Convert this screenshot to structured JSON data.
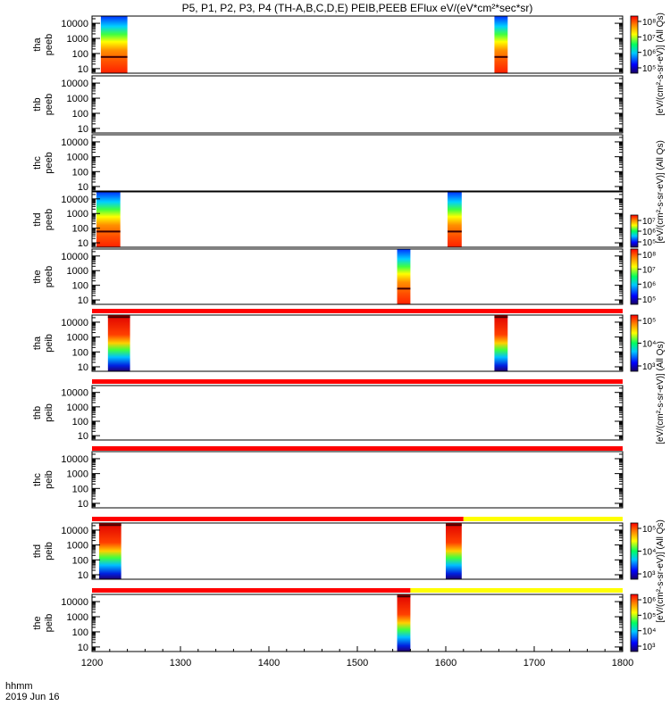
{
  "title": "P5, P1, P2, P3, P4 (TH-A,B,C,D,E) PEIB,PEEB EFlux eV/(eV*cm²*sec*sr)",
  "footer": {
    "time_label": "hhmm",
    "date_label": "2019 Jun 16"
  },
  "chart_data": {
    "type": "heatmap",
    "x_axis": {
      "range": [
        1200,
        1800
      ],
      "ticks": [
        "1200",
        "1300",
        "1400",
        "1500",
        "1600",
        "1700",
        "1800"
      ]
    },
    "y_axis": {
      "scale": "log",
      "range": [
        5,
        30000
      ],
      "ticks": [
        "10",
        "100",
        "1000",
        "10000"
      ]
    },
    "panels": [
      {
        "label1": "tha",
        "label2": "peeb",
        "bursts": [
          [
            1210,
            1240
          ],
          [
            1655,
            1670
          ]
        ],
        "style": "electron"
      },
      {
        "label1": "thb",
        "label2": "peeb",
        "bursts": []
      },
      {
        "label1": "thc",
        "label2": "peeb",
        "bursts": []
      },
      {
        "label1": "thd",
        "label2": "peeb",
        "bursts": [
          [
            1205,
            1232
          ],
          [
            1602,
            1618
          ]
        ],
        "style": "electron"
      },
      {
        "label1": "the",
        "label2": "peeb",
        "bursts": [
          [
            1545,
            1560
          ]
        ],
        "style": "electron"
      },
      {
        "label1": "tha",
        "label2": "peib",
        "bursts": [
          [
            1218,
            1243
          ],
          [
            1655,
            1670
          ]
        ],
        "style": "ion"
      },
      {
        "label1": "thb",
        "label2": "peib",
        "bursts": []
      },
      {
        "label1": "thc",
        "label2": "peib",
        "bursts": []
      },
      {
        "label1": "thd",
        "label2": "peib",
        "bursts": [
          [
            1208,
            1233
          ],
          [
            1600,
            1618
          ]
        ],
        "style": "ion"
      },
      {
        "label1": "the",
        "label2": "peib",
        "bursts": [
          [
            1545,
            1560
          ]
        ],
        "style": "ion"
      }
    ],
    "colorbars": [
      {
        "ticks": [
          "10⁸",
          "10⁷",
          "10⁶",
          "10⁵"
        ]
      },
      {
        "ticks": [
          "10⁷",
          "10⁶",
          "10⁵"
        ]
      },
      {
        "ticks": [
          "10⁸",
          "10⁷",
          "10⁶",
          "10⁵"
        ]
      },
      {
        "ticks": [
          "10⁵",
          "10⁴",
          "10³"
        ]
      },
      {
        "ticks": [
          "10⁵",
          "10⁴",
          "10³"
        ]
      },
      {
        "ticks": [
          "10⁶",
          "10⁵",
          "10⁴",
          "10³"
        ]
      }
    ],
    "colorbar_labels": [
      "[eV/(cm²-s-sr-eV)] (All Qs)",
      "[eV/(cm²-s-sr-eV)] (All Qs)",
      "[eV/(cm²-s-sr-eV)] (All Qs)",
      "[eV/(cm²-s-sr-eV)] (All Qs)"
    ],
    "status_bars": [
      {
        "red_until": 1800
      },
      {
        "red_until": 1800
      },
      {
        "red_until": 1800
      },
      {
        "red_until": 1620
      },
      {
        "red_until": 1560
      }
    ]
  }
}
